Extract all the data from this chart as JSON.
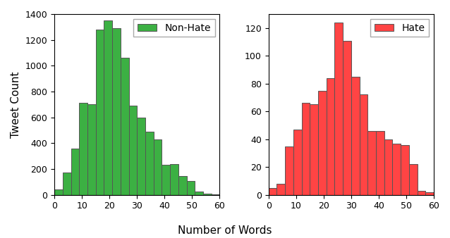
{
  "non_hate_lefts": [
    0,
    3,
    6,
    9,
    12,
    15,
    18,
    21,
    24,
    27,
    30,
    33,
    36,
    39,
    42,
    45,
    48,
    51,
    54,
    57
  ],
  "non_hate_vals": [
    40,
    170,
    360,
    710,
    700,
    1280,
    1350,
    1290,
    1060,
    690,
    600,
    490,
    430,
    230,
    240,
    145,
    105,
    25,
    10,
    2
  ],
  "hate_lefts": [
    0,
    3,
    6,
    9,
    12,
    15,
    18,
    21,
    24,
    27,
    30,
    33,
    36,
    39,
    42,
    45,
    48,
    51,
    54,
    57
  ],
  "hate_vals": [
    5,
    8,
    35,
    47,
    66,
    65,
    75,
    84,
    124,
    111,
    85,
    72,
    46,
    46,
    40,
    37,
    36,
    22,
    3,
    2
  ],
  "non_hate_color": "#3cb043",
  "hate_color": "#ff4444",
  "edge_color": "#555555",
  "ylabel": "Tweet Count",
  "xlabel": "Number of Words",
  "non_hate_label": "Non-Hate",
  "hate_label": "Hate",
  "non_hate_ylim": [
    0,
    1400
  ],
  "hate_ylim": [
    0,
    130
  ],
  "xlim": [
    0,
    60
  ],
  "bin_width": 3,
  "legend_fontsize": 10,
  "axis_label_fontsize": 11,
  "tick_fontsize": 9,
  "non_hate_yticks": [
    0,
    200,
    400,
    600,
    800,
    1000,
    1200,
    1400
  ],
  "hate_yticks": [
    0,
    20,
    40,
    60,
    80,
    100,
    120
  ],
  "xticks": [
    0,
    10,
    20,
    30,
    40,
    50,
    60
  ]
}
